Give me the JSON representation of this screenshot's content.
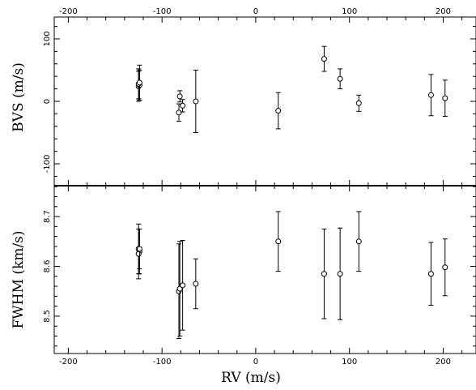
{
  "chart_data": [
    {
      "type": "scatter",
      "panel": "top",
      "xlim": [
        -215,
        235
      ],
      "ylim": [
        -135,
        135
      ],
      "xlabel": "",
      "ylabel": "BVS (m/s)",
      "xticks": [
        -200,
        -100,
        0,
        100,
        200
      ],
      "yticks": [
        -100,
        0,
        100
      ],
      "x_tick_labels_position": "top",
      "error_bars": true,
      "points": [
        {
          "x": -125,
          "y": 24,
          "err": 24
        },
        {
          "x": -124,
          "y": 26,
          "err": 24
        },
        {
          "x": -125,
          "y": 28,
          "err": 24
        },
        {
          "x": -124,
          "y": 30,
          "err": 28
        },
        {
          "x": -82,
          "y": -18,
          "err": 14
        },
        {
          "x": -81,
          "y": 8,
          "err": 9
        },
        {
          "x": -78,
          "y": -7,
          "err": 10
        },
        {
          "x": -64,
          "y": 0,
          "err": 50
        },
        {
          "x": 24,
          "y": -15,
          "err": 29
        },
        {
          "x": 73,
          "y": 68,
          "err": 20
        },
        {
          "x": 90,
          "y": 36,
          "err": 16
        },
        {
          "x": 110,
          "y": -3,
          "err": 13
        },
        {
          "x": 187,
          "y": 10,
          "err": 33
        },
        {
          "x": 202,
          "y": 5,
          "err": 29
        }
      ]
    },
    {
      "type": "scatter",
      "panel": "bottom",
      "xlim": [
        -215,
        235
      ],
      "ylim": [
        8.425,
        8.762
      ],
      "xlabel": "RV (m/s)",
      "ylabel": "FWHM (km/s)",
      "xticks": [
        -200,
        -100,
        0,
        100,
        200
      ],
      "yticks": [
        8.5,
        8.6,
        8.7
      ],
      "x_tick_labels_position": "bottom",
      "error_bars": true,
      "points": [
        {
          "x": -125,
          "y": 8.635,
          "err": 0.05
        },
        {
          "x": -124,
          "y": 8.63,
          "err": 0.045
        },
        {
          "x": -125,
          "y": 8.625,
          "err": 0.05
        },
        {
          "x": -124,
          "y": 8.635,
          "err": 0.04
        },
        {
          "x": -82,
          "y": 8.55,
          "err": 0.095
        },
        {
          "x": -81,
          "y": 8.555,
          "err": 0.095
        },
        {
          "x": -78,
          "y": 8.562,
          "err": 0.09
        },
        {
          "x": -64,
          "y": 8.565,
          "err": 0.05
        },
        {
          "x": 24,
          "y": 8.65,
          "err": 0.06
        },
        {
          "x": 73,
          "y": 8.585,
          "err": 0.09
        },
        {
          "x": 90,
          "y": 8.585,
          "err": 0.092
        },
        {
          "x": 110,
          "y": 8.65,
          "err": 0.06
        },
        {
          "x": 187,
          "y": 8.585,
          "err": 0.063
        },
        {
          "x": 202,
          "y": 8.598,
          "err": 0.057
        }
      ]
    }
  ]
}
